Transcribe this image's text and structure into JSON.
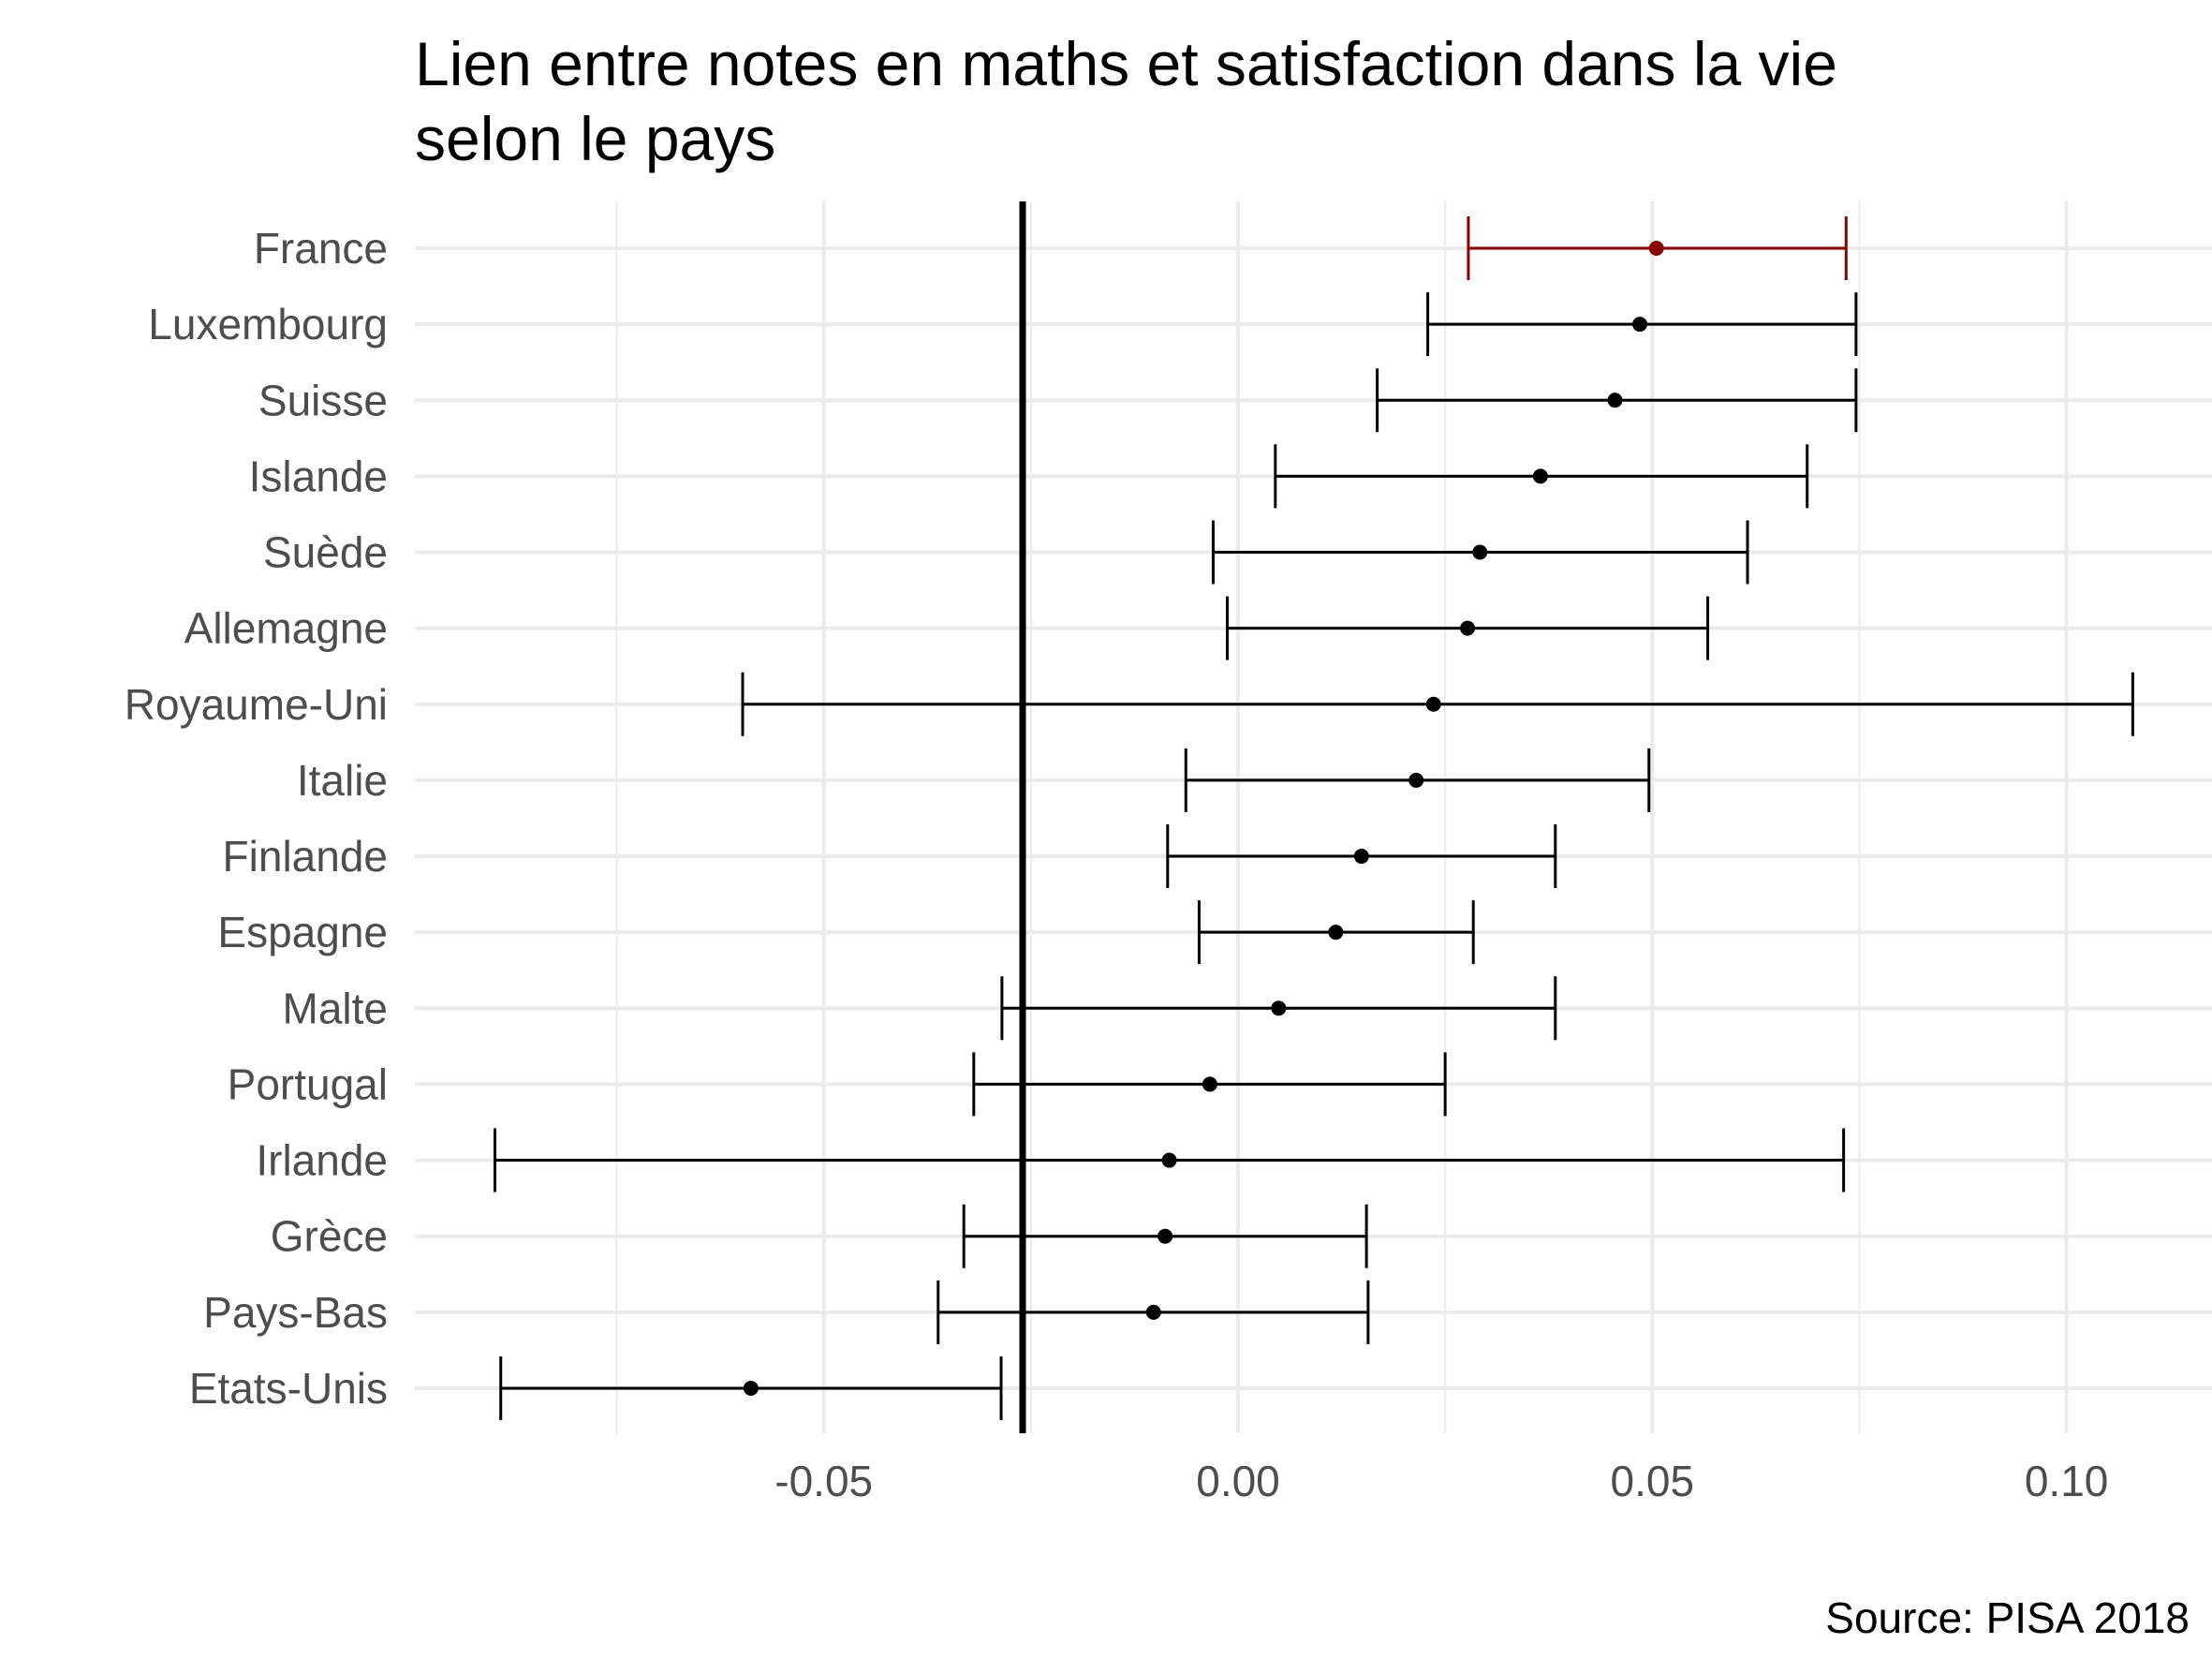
{
  "chart_data": {
    "type": "errorbar",
    "title_lines": [
      "Lien entre notes en maths et satisfaction dans la vie",
      "selon le pays"
    ],
    "caption": "Source: PISA 2018",
    "xlabel": "",
    "ylabel": "",
    "xlim": [
      -0.1,
      0.117
    ],
    "x_ticks": [
      -0.05,
      0.0,
      0.05,
      0.1
    ],
    "x_tick_labels": [
      "-0.05",
      "0.00",
      "0.05",
      "0.10"
    ],
    "x_minor_ticks": [
      -0.075,
      -0.025,
      0.025,
      0.075
    ],
    "reference_line": -0.026,
    "grid": true,
    "colors": {
      "highlight": "#8b0000",
      "default": "#000000",
      "grid": "#ebebeb"
    },
    "countries": [
      {
        "name": "France",
        "estimate": 0.0505,
        "low": 0.0278,
        "high": 0.0734,
        "highlight": true
      },
      {
        "name": "Luxembourg",
        "estimate": 0.0485,
        "low": 0.0229,
        "high": 0.0746
      },
      {
        "name": "Suisse",
        "estimate": 0.0455,
        "low": 0.0168,
        "high": 0.0746
      },
      {
        "name": "Islande",
        "estimate": 0.0365,
        "low": 0.0045,
        "high": 0.0687
      },
      {
        "name": "Suède",
        "estimate": 0.0292,
        "low": -0.003,
        "high": 0.0615
      },
      {
        "name": "Allemagne",
        "estimate": 0.0277,
        "low": -0.0013,
        "high": 0.0567
      },
      {
        "name": "Royaume-Uni",
        "estimate": 0.0236,
        "low": -0.0598,
        "high": 0.108
      },
      {
        "name": "Italie",
        "estimate": 0.0215,
        "low": -0.0063,
        "high": 0.0496
      },
      {
        "name": "Finlande",
        "estimate": 0.0149,
        "low": -0.0085,
        "high": 0.0383
      },
      {
        "name": "Espagne",
        "estimate": 0.0118,
        "low": -0.0047,
        "high": 0.0284
      },
      {
        "name": "Malte",
        "estimate": 0.0049,
        "low": -0.0285,
        "high": 0.0383
      },
      {
        "name": "Portugal",
        "estimate": -0.0034,
        "low": -0.0319,
        "high": 0.025
      },
      {
        "name": "Irlande",
        "estimate": -0.0083,
        "low": -0.0897,
        "high": 0.0731
      },
      {
        "name": "Grèce",
        "estimate": -0.0088,
        "low": -0.0331,
        "high": 0.0155
      },
      {
        "name": "Pays-Bas",
        "estimate": -0.0102,
        "low": -0.0362,
        "high": 0.0157
      },
      {
        "name": "Etats-Unis",
        "estimate": -0.0588,
        "low": -0.089,
        "high": -0.0286
      }
    ]
  }
}
